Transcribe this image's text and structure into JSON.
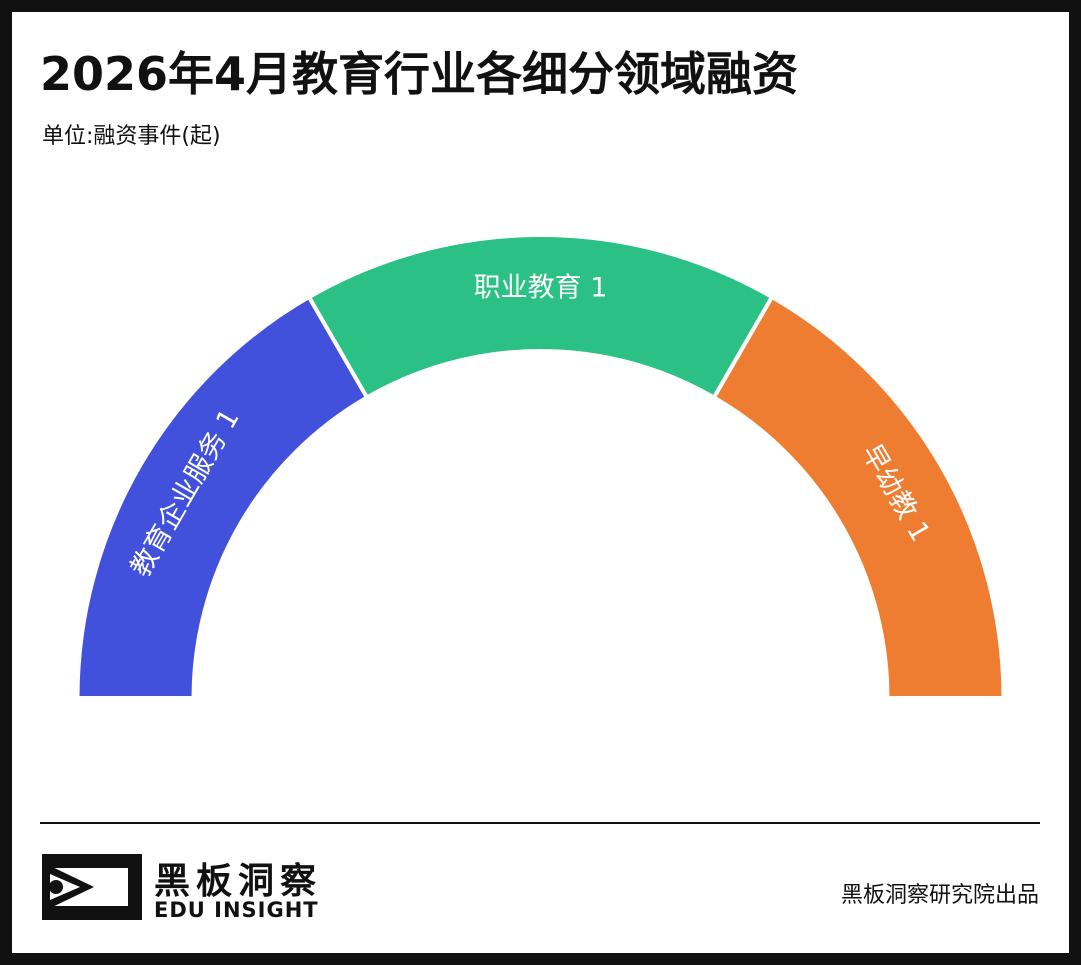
{
  "title": "2026年4月教育行业各细分领域融资",
  "subtitle": "单位:融资事件(起)",
  "chart_data": {
    "type": "pie",
    "variant": "semicircle-donut",
    "title": "2026年4月教育行业各细分领域融资",
    "unit": "融资事件(起)",
    "slices": [
      {
        "label": "教育企业服务",
        "value": 1,
        "color": "#4151dc"
      },
      {
        "label": "职业教育",
        "value": 1,
        "color": "#2bc184"
      },
      {
        "label": "早幼教",
        "value": 1,
        "color": "#ee7d31"
      }
    ]
  },
  "footer": {
    "brand_cn": "黑板洞察",
    "brand_en": "EDU INSIGHT",
    "credit": "黑板洞察研究院出品",
    "logo_icon": "eye-in-frame-icon"
  }
}
